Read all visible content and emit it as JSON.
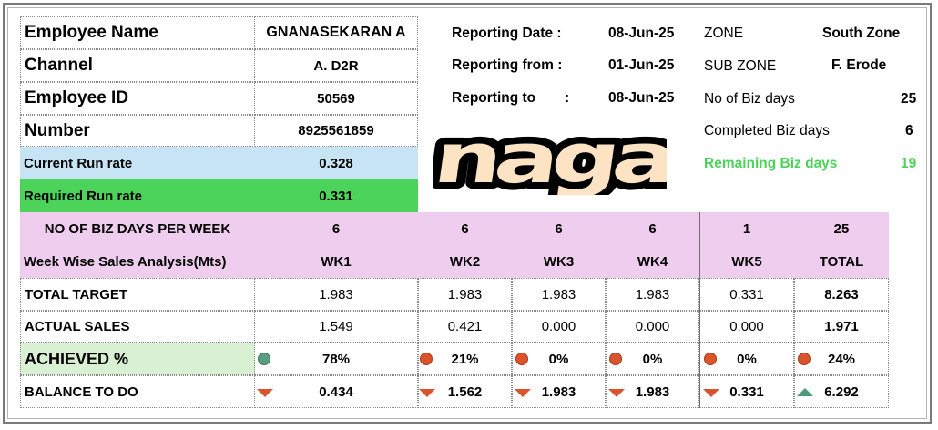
{
  "employee": {
    "name_label": "Employee Name",
    "name_value": "GNANASEKARAN A",
    "channel_label": "Channel",
    "channel_value": "A. D2R",
    "id_label": "Employee ID",
    "id_value": "50569",
    "number_label": "Number",
    "number_value": "8925561859",
    "current_run_rate_label": "Current Run rate",
    "current_run_rate_value": "0.328",
    "required_run_rate_label": "Required Run rate",
    "required_run_rate_value": "0.331"
  },
  "reporting": {
    "date_label": "Reporting Date :",
    "date_value": "08-Jun-25",
    "from_label": "Reporting from :",
    "from_value": "01-Jun-25",
    "to_label": "Reporting to",
    "to_colon": ":",
    "to_value": "08-Jun-25"
  },
  "zone": {
    "zone_label": "ZONE",
    "zone_value": "South Zone",
    "sub_zone_label": "SUB ZONE",
    "sub_zone_value": "F. Erode",
    "biz_days_label": "No of Biz days",
    "biz_days_value": "25",
    "completed_label": "Completed Biz days",
    "completed_value": "6",
    "remaining_label": "Remaining Biz days",
    "remaining_value": "19",
    "remaining_color": "#4cd45a"
  },
  "logo": {
    "text": "naga",
    "fill_color": "#fbe3c3",
    "outline_color": "#000000"
  },
  "table": {
    "days_row_label": "NO OF BIZ DAYS PER WEEK",
    "days": [
      "6",
      "6",
      "6",
      "6",
      "1",
      "25"
    ],
    "header_label": "Week Wise Sales Analysis(Mts)",
    "weeks": [
      "WK1",
      "WK2",
      "WK3",
      "WK4",
      "WK5",
      "TOTAL"
    ],
    "target_label": "TOTAL TARGET",
    "target": [
      "1.983",
      "1.983",
      "1.983",
      "1.983",
      "0.331",
      "8.263"
    ],
    "actual_label": "ACTUAL SALES",
    "actual": [
      "1.549",
      "0.421",
      "0.000",
      "0.000",
      "0.000",
      "1.971"
    ],
    "achieved_label": "ACHIEVED  %",
    "achieved": [
      "78%",
      "21%",
      "0%",
      "0%",
      "0%",
      "24%"
    ],
    "achieved_icons": [
      "green-circle-icon",
      "red-circle-icon",
      "red-circle-icon",
      "red-circle-icon",
      "red-circle-icon",
      "red-circle-icon"
    ],
    "balance_label": "BALANCE TO DO",
    "balance": [
      "0.434",
      "1.562",
      "1.983",
      "1.983",
      "0.331",
      "6.292"
    ],
    "balance_icons": [
      "red-down-triangle-icon",
      "red-down-triangle-icon",
      "red-down-triangle-icon",
      "red-down-triangle-icon",
      "red-down-triangle-icon",
      "green-up-triangle-icon"
    ],
    "colors": {
      "pink": "#efcdee",
      "green_circle": "#5a9e80",
      "red": "#d9542c",
      "green_triangle": "#4d9a7b"
    }
  }
}
